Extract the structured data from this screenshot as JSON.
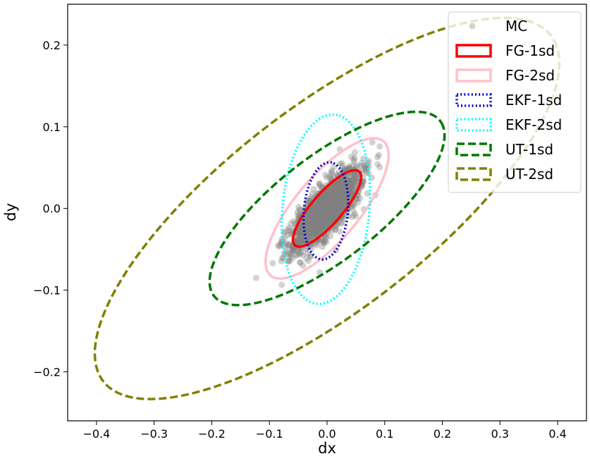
{
  "chart_data": {
    "type": "scatter",
    "xlabel": "dx",
    "ylabel": "dy",
    "xlim": [
      -0.45,
      0.45
    ],
    "ylim": [
      -0.26,
      0.25
    ],
    "xticks": [
      -0.4,
      -0.3,
      -0.2,
      -0.1,
      0.0,
      0.1,
      0.2,
      0.3,
      0.4
    ],
    "yticks": [
      -0.2,
      -0.1,
      0.0,
      0.1,
      0.2
    ],
    "xtick_labels": [
      "−0.4",
      "−0.3",
      "−0.2",
      "−0.1",
      "0.0",
      "0.1",
      "0.2",
      "0.3",
      "0.4"
    ],
    "ytick_labels": [
      "−0.2",
      "−0.1",
      "0.0",
      "0.1",
      "0.2"
    ],
    "grid": false,
    "legend_position": "top-right",
    "scatter": {
      "name": "MC",
      "color": "#808080",
      "opacity": 0.35,
      "center": [
        0.0,
        0.0
      ],
      "sd_major": 0.037,
      "sd_minor": 0.013,
      "angle_deg": 37,
      "count": 1500
    },
    "series": [
      {
        "name": "FG-1sd",
        "color": "#ff0000",
        "style": "solid",
        "center": [
          0.0,
          0.0
        ],
        "semi_major": 0.072,
        "semi_minor": 0.022,
        "angle_deg": 37
      },
      {
        "name": "FG-2sd",
        "color": "#ffc0cb",
        "style": "solid",
        "center": [
          0.0,
          0.0
        ],
        "semi_major": 0.129,
        "semi_minor": 0.046,
        "angle_deg": 37
      },
      {
        "name": "EKF-1sd",
        "color": "#0000cc",
        "style": "dotted",
        "center": [
          -0.002,
          -0.003
        ],
        "semi_major": 0.06,
        "semi_minor": 0.038,
        "angle_deg": 80
      },
      {
        "name": "EKF-2sd",
        "color": "#00ffff",
        "style": "dotted",
        "center": [
          -0.002,
          -0.001
        ],
        "semi_major": 0.117,
        "semi_minor": 0.075,
        "angle_deg": 80
      },
      {
        "name": "UT-1sd",
        "color": "#007700",
        "style": "dashed",
        "center": [
          0.0,
          0.0
        ],
        "semi_major": 0.225,
        "semi_minor": 0.07,
        "angle_deg": 26.5
      },
      {
        "name": "UT-2sd",
        "color": "#808000",
        "style": "dashed",
        "center": [
          0.0,
          0.0
        ],
        "semi_major": 0.445,
        "semi_minor": 0.137,
        "angle_deg": 26.5
      }
    ]
  }
}
